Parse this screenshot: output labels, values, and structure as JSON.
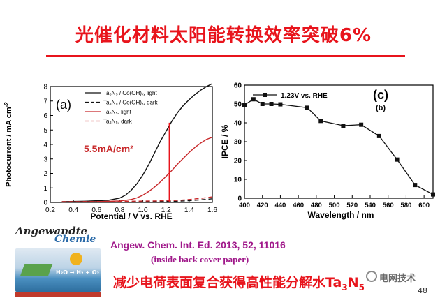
{
  "slide": {
    "title": "光催化材料太阳能转换效率突破6%",
    "reference": "Angew. Chem. Int. Ed. 2013, 52, 11016",
    "reference_note": "(inside back cover paper)",
    "bottom_text": "减少电荷表面复合获得高性能分解水Ta",
    "bottom_sub1": "3",
    "bottom_mid": "N",
    "bottom_sub2": "5",
    "watermark": "电网技术",
    "page_number": "48",
    "cover_brand": "Angewandte",
    "cover_brand2": "Chemie",
    "cover_formula": "H₂O → H₂ + O₂",
    "title_color": "#e8141c",
    "reference_color": "#a0188a"
  },
  "chart_data": [
    {
      "type": "line",
      "panel_label": "(a)",
      "xlabel": "Potential / V vs. RHE",
      "ylabel": "Photocurrent / mA cm",
      "ylabel_sup": "-2",
      "xlim": [
        0.2,
        1.6
      ],
      "ylim": [
        0,
        8
      ],
      "xticks": [
        "0.2",
        "0.4",
        "0.6",
        "0.8",
        "1.0",
        "1.2",
        "1.4",
        "1.6"
      ],
      "yticks": [
        "0",
        "1",
        "2",
        "3",
        "4",
        "5",
        "6",
        "7",
        "8"
      ],
      "annotation": "5.5mA/cm²",
      "marker_x": 1.23,
      "marker_y": 5.5,
      "legend": [
        {
          "formula": "Ta₃N₅ / Co(OH)ₓ, light",
          "color": "#111111",
          "dash": "solid"
        },
        {
          "formula": "Ta₃N₅ / Co(OH)ₓ, dark",
          "color": "#111111",
          "dash": "dashed"
        },
        {
          "formula": "Ta₃N₅, light",
          "color": "#c8282a",
          "dash": "solid"
        },
        {
          "formula": "Ta₃N₅, dark",
          "color": "#c8282a",
          "dash": "dashed"
        }
      ],
      "series": [
        {
          "name": "Ta₃N₅ / Co(OH)ₓ, light",
          "x": [
            0.3,
            0.5,
            0.7,
            0.8,
            0.85,
            0.9,
            0.95,
            1.0,
            1.05,
            1.1,
            1.15,
            1.2,
            1.25,
            1.3,
            1.35,
            1.4,
            1.45,
            1.5,
            1.55,
            1.6
          ],
          "y": [
            0.05,
            0.08,
            0.15,
            0.3,
            0.5,
            0.85,
            1.3,
            1.9,
            2.6,
            3.4,
            4.2,
            4.9,
            5.6,
            6.2,
            6.7,
            7.1,
            7.45,
            7.75,
            8.0,
            8.2
          ]
        },
        {
          "name": "Ta₃N₅ / Co(OH)ₓ, dark",
          "x": [
            0.3,
            0.6,
            0.9,
            1.1,
            1.3,
            1.4,
            1.5,
            1.6
          ],
          "y": [
            0.02,
            0.03,
            0.04,
            0.05,
            0.08,
            0.12,
            0.18,
            0.25
          ]
        },
        {
          "name": "Ta₃N₅, light",
          "x": [
            0.3,
            0.6,
            0.8,
            0.9,
            0.95,
            1.0,
            1.05,
            1.1,
            1.15,
            1.2,
            1.25,
            1.3,
            1.35,
            1.4,
            1.45,
            1.5,
            1.55,
            1.6
          ],
          "y": [
            0.03,
            0.05,
            0.1,
            0.2,
            0.32,
            0.5,
            0.75,
            1.05,
            1.4,
            1.8,
            2.2,
            2.65,
            3.05,
            3.45,
            3.8,
            4.1,
            4.35,
            4.5
          ]
        },
        {
          "name": "Ta₃N₅, dark",
          "x": [
            0.3,
            0.6,
            0.9,
            1.1,
            1.3,
            1.4,
            1.5,
            1.6
          ],
          "y": [
            0.05,
            0.06,
            0.08,
            0.1,
            0.14,
            0.2,
            0.28,
            0.38
          ]
        }
      ]
    },
    {
      "type": "line",
      "panel_label": "(c)",
      "sub_label": "(b)",
      "xlabel": "Wavelength / nm",
      "ylabel": "IPCE / %",
      "xlim": [
        400,
        610
      ],
      "ylim": [
        0,
        60
      ],
      "xticks": [
        "400",
        "420",
        "440",
        "460",
        "480",
        "500",
        "520",
        "540",
        "560",
        "580",
        "600"
      ],
      "yticks": [
        "0",
        "10",
        "20",
        "30",
        "40",
        "50",
        "60"
      ],
      "legend": [
        {
          "name": "1.23V vs. RHE",
          "color": "#111111"
        }
      ],
      "series": [
        {
          "name": "1.23V vs. RHE",
          "x": [
            400,
            410,
            420,
            430,
            440,
            470,
            485,
            510,
            530,
            550,
            570,
            590,
            610
          ],
          "y": [
            49.5,
            52.5,
            50,
            50,
            49.8,
            48,
            41,
            38.5,
            39,
            33,
            20.5,
            7,
            2
          ]
        }
      ]
    }
  ]
}
